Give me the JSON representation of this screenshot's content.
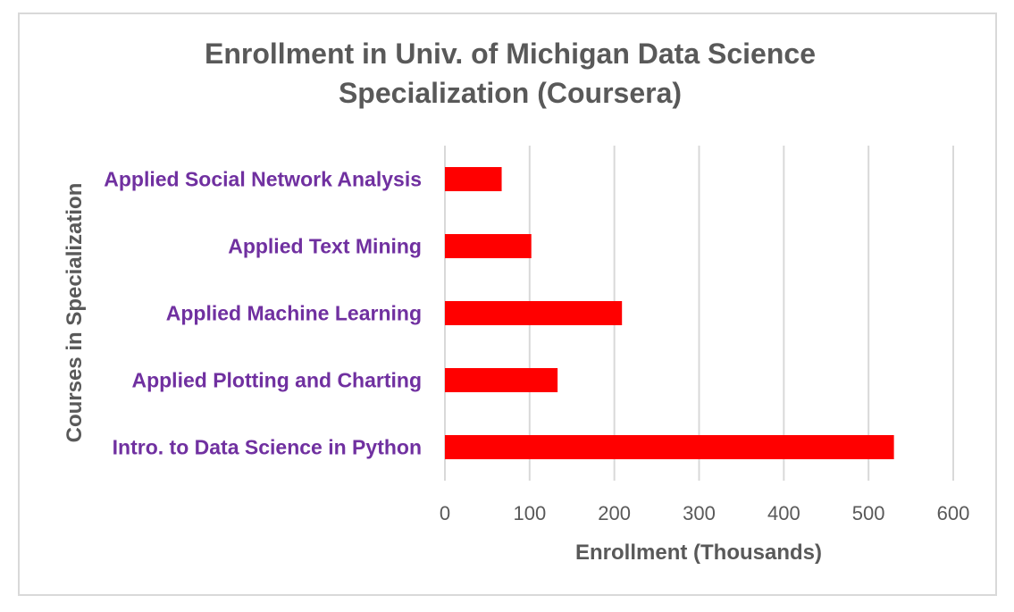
{
  "chart_data": {
    "type": "bar",
    "orientation": "horizontal",
    "title_lines": [
      "Enrollment in Univ. of Michigan Data Science",
      "Specialization (Coursera)"
    ],
    "title": "Enrollment in Univ. of Michigan Data Science Specialization (Coursera)",
    "xlabel": "Enrollment (Thousands)",
    "ylabel": "Courses in Specialization",
    "categories": [
      "Intro. to Data Science in Python",
      "Applied Plotting and Charting",
      "Applied Machine Learning",
      "Applied Text Mining",
      "Applied Social Network Analysis"
    ],
    "values": [
      530,
      133,
      209,
      102,
      67
    ],
    "xlim": [
      0,
      600
    ],
    "xticks": [
      0,
      100,
      200,
      300,
      400,
      500,
      600
    ],
    "grid": true,
    "legend": "none",
    "colors": {
      "bar": "#ff0000",
      "category_label": "#7030a0",
      "title": "#595959",
      "gridline": "#d9d9d9"
    }
  }
}
